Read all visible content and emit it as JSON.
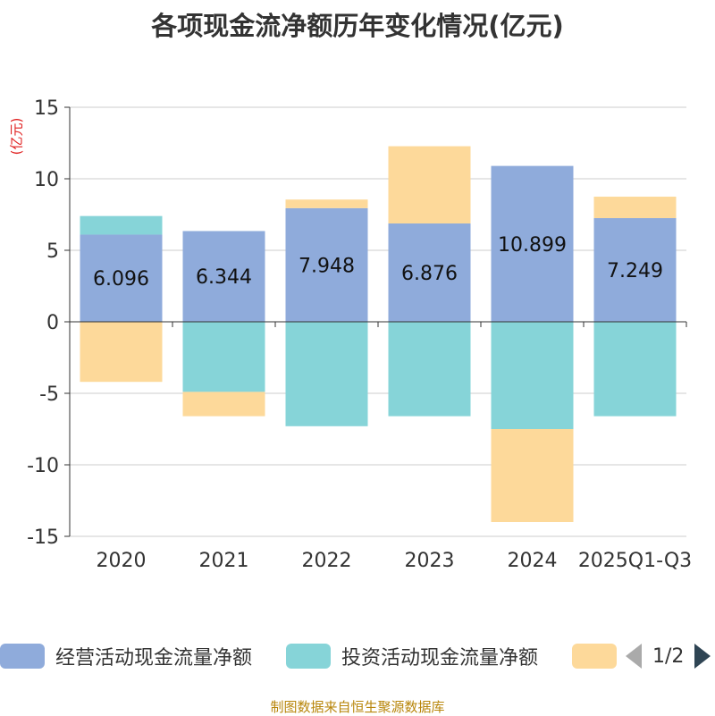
{
  "title": "各项现金流净额历年变化情况(亿元)",
  "y_unit": "(亿元)",
  "legend": {
    "items": [
      {
        "label": "经营活动现金流量净额",
        "color": "#8fabdb"
      },
      {
        "label": "投资活动现金流量净额",
        "color": "#86d4d8"
      },
      {
        "label": "",
        "color": "#fdd99a"
      }
    ],
    "page": "1/2"
  },
  "footer": "制图数据来自恒生聚源数据库",
  "chart_data": {
    "type": "bar",
    "stacked": true,
    "categories": [
      "2020",
      "2021",
      "2022",
      "2023",
      "2024",
      "2025Q1-Q3"
    ],
    "ylim": [
      -15,
      15
    ],
    "yticks": [
      15,
      10,
      5,
      0,
      -5,
      -10,
      -15
    ],
    "grid": true,
    "legend_position": "bottom",
    "series": [
      {
        "name": "经营活动现金流量净额",
        "color": "#8fabdb",
        "values": [
          6.096,
          6.344,
          7.948,
          6.876,
          10.899,
          7.249
        ],
        "labels": [
          "6.096",
          "6.344",
          "7.948",
          "6.876",
          "10.899",
          "7.249"
        ]
      },
      {
        "name": "投资活动现金流量净额",
        "color": "#86d4d8",
        "values": [
          1.3,
          -4.9,
          -7.3,
          -6.6,
          -7.5,
          -6.6
        ]
      },
      {
        "color": "#fdd99a",
        "values": [
          -4.2,
          -1.7,
          0.6,
          5.4,
          -6.5,
          1.5
        ]
      }
    ]
  }
}
